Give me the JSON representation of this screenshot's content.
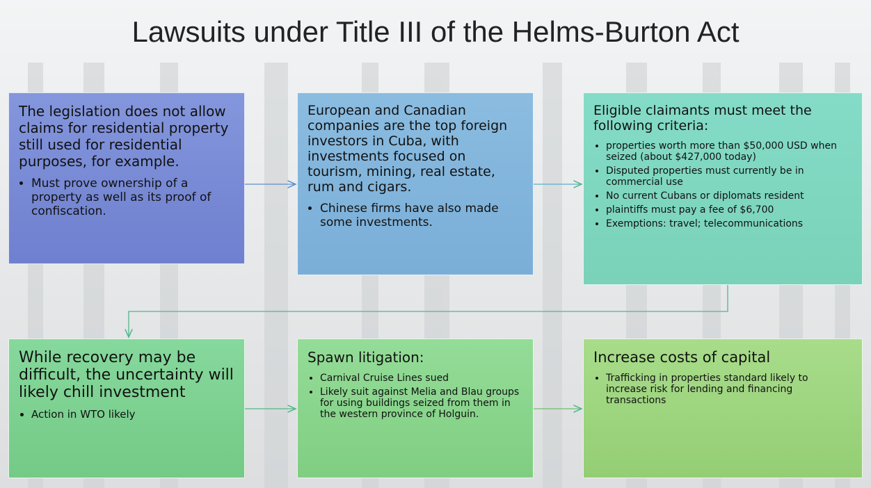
{
  "title": "Lawsuits under Title III of the Helms-Burton Act",
  "nodes": [
    {
      "text": "The legislation does not allow claims for residential property still used for residential purposes, for example.",
      "bullets": [
        "Must prove ownership of a property as well as its proof of confiscation."
      ]
    },
    {
      "text": "European and Canadian companies are the top foreign investors in Cuba, with investments focused on tourism, mining, real estate, rum and cigars.",
      "bullets": [
        "Chinese firms have also made some investments."
      ]
    },
    {
      "text": "Eligible claimants must meet the following criteria:",
      "bullets": [
        "properties worth more than $50,000 USD when seized (about $427,000 today)",
        "Disputed properties must currently be in commercial use",
        "No current Cubans or diplomats resident",
        "plaintiffs must pay a fee of $6,700",
        "Exemptions: travel; telecommunications"
      ]
    },
    {
      "text": "While recovery may be difficult, the uncertainty will likely chill investment",
      "bullets": [
        "Action in WTO likely"
      ]
    },
    {
      "text": "Spawn litigation:",
      "bullets": [
        "Carnival Cruise Lines sued",
        "Likely suit against Melia and Blau groups for using buildings seized from them in the western province of Holguin."
      ]
    },
    {
      "text": "Increase costs of capital",
      "bullets": [
        "Trafficking in properties standard likely to increase risk for lending and financing transactions"
      ]
    }
  ]
}
